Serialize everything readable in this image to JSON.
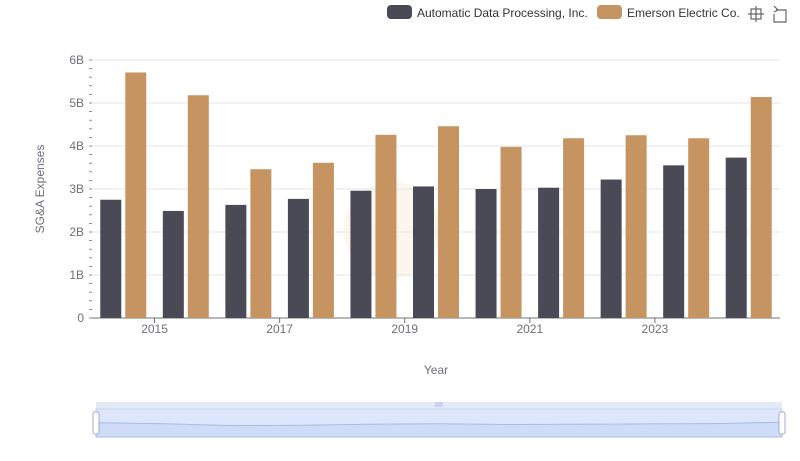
{
  "chart_data": {
    "type": "bar",
    "categories": [
      "2014",
      "2015",
      "2016",
      "2017",
      "2018",
      "2019",
      "2020",
      "2021",
      "2022",
      "2023",
      "2024"
    ],
    "x_tick_labels": [
      "2015",
      "2017",
      "2019",
      "2021",
      "2023"
    ],
    "y_tick_labels": [
      "0",
      "1B",
      "2B",
      "3B",
      "4B",
      "5B",
      "6B"
    ],
    "series": [
      {
        "name": "Automatic Data Processing, Inc.",
        "color": "#4a4a57",
        "values": [
          2.75,
          2.49,
          2.63,
          2.77,
          2.96,
          3.06,
          3.0,
          3.03,
          3.22,
          3.55,
          3.73
        ]
      },
      {
        "name": "Emerson Electric Co.",
        "color": "#c69461",
        "values": [
          5.71,
          5.18,
          3.46,
          3.61,
          4.26,
          4.46,
          3.98,
          4.18,
          4.25,
          4.18,
          5.14
        ]
      }
    ],
    "xlabel": "Year",
    "ylabel": "SG&A Expenses",
    "ylim": [
      0,
      6
    ],
    "unit": "B",
    "grid": true,
    "legend_position": "top-right"
  },
  "toolbar": {
    "zoom_icon": "zoom-icon",
    "restore_icon": "restore-icon"
  },
  "datazoom": {
    "range": [
      0,
      100
    ]
  }
}
